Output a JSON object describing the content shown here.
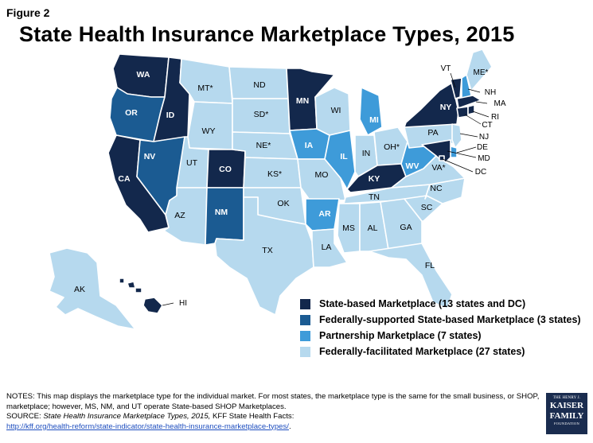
{
  "figure_label": "Figure 2",
  "title": "State Health Insurance Marketplace Types, 2015",
  "colors": {
    "state_based": "#13284c",
    "federally_supported": "#1b5b92",
    "partnership": "#3e9bd9",
    "federally_facilitated": "#b6d9ee"
  },
  "legend": [
    {
      "type": "state_based",
      "label": "State-based Marketplace (13 states and DC)"
    },
    {
      "type": "federally_supported",
      "label": "Federally-supported State-based Marketplace (3 states)"
    },
    {
      "type": "partnership",
      "label": "Partnership Marketplace (7 states)"
    },
    {
      "type": "federally_facilitated",
      "label": "Federally-facilitated Marketplace (27 states)"
    }
  ],
  "states": {
    "WA": {
      "label": "WA",
      "type": "state_based"
    },
    "OR": {
      "label": "OR",
      "type": "federally_supported"
    },
    "CA": {
      "label": "CA",
      "type": "state_based"
    },
    "ID": {
      "label": "ID",
      "type": "state_based"
    },
    "NV": {
      "label": "NV",
      "type": "federally_supported"
    },
    "MT": {
      "label": "MT*",
      "type": "federally_facilitated"
    },
    "WY": {
      "label": "WY",
      "type": "federally_facilitated"
    },
    "UT": {
      "label": "UT",
      "type": "federally_facilitated"
    },
    "AZ": {
      "label": "AZ",
      "type": "federally_facilitated"
    },
    "CO": {
      "label": "CO",
      "type": "state_based"
    },
    "NM": {
      "label": "NM",
      "type": "federally_supported"
    },
    "ND": {
      "label": "ND",
      "type": "federally_facilitated"
    },
    "SD": {
      "label": "SD*",
      "type": "federally_facilitated"
    },
    "NE": {
      "label": "NE*",
      "type": "federally_facilitated"
    },
    "KS": {
      "label": "KS*",
      "type": "federally_facilitated"
    },
    "OK": {
      "label": "OK",
      "type": "federally_facilitated"
    },
    "TX": {
      "label": "TX",
      "type": "federally_facilitated"
    },
    "MN": {
      "label": "MN",
      "type": "state_based"
    },
    "IA": {
      "label": "IA",
      "type": "partnership"
    },
    "MO": {
      "label": "MO",
      "type": "federally_facilitated"
    },
    "AR": {
      "label": "AR",
      "type": "partnership"
    },
    "LA": {
      "label": "LA",
      "type": "federally_facilitated"
    },
    "WI": {
      "label": "WI",
      "type": "federally_facilitated"
    },
    "IL": {
      "label": "IL",
      "type": "partnership"
    },
    "MI": {
      "label": "MI",
      "type": "partnership"
    },
    "IN": {
      "label": "IN",
      "type": "federally_facilitated"
    },
    "OH": {
      "label": "OH*",
      "type": "federally_facilitated"
    },
    "KY": {
      "label": "KY",
      "type": "state_based"
    },
    "TN": {
      "label": "TN",
      "type": "federally_facilitated"
    },
    "MS": {
      "label": "MS",
      "type": "federally_facilitated"
    },
    "AL": {
      "label": "AL",
      "type": "federally_facilitated"
    },
    "GA": {
      "label": "GA",
      "type": "federally_facilitated"
    },
    "FL": {
      "label": "FL",
      "type": "federally_facilitated"
    },
    "SC": {
      "label": "SC",
      "type": "federally_facilitated"
    },
    "NC": {
      "label": "NC",
      "type": "federally_facilitated"
    },
    "VA": {
      "label": "VA*",
      "type": "federally_facilitated"
    },
    "WV": {
      "label": "WV",
      "type": "partnership"
    },
    "PA": {
      "label": "PA",
      "type": "federally_facilitated"
    },
    "NY": {
      "label": "NY",
      "type": "state_based"
    },
    "VT": {
      "label": "VT",
      "type": "state_based"
    },
    "NH": {
      "label": "NH",
      "type": "partnership"
    },
    "ME": {
      "label": "ME*",
      "type": "federally_facilitated"
    },
    "MA": {
      "label": "MA",
      "type": "state_based"
    },
    "RI": {
      "label": "RI",
      "type": "state_based"
    },
    "CT": {
      "label": "CT",
      "type": "state_based"
    },
    "NJ": {
      "label": "NJ",
      "type": "federally_facilitated"
    },
    "DE": {
      "label": "DE",
      "type": "partnership"
    },
    "MD": {
      "label": "MD",
      "type": "state_based"
    },
    "DC": {
      "label": "DC",
      "type": "state_based"
    },
    "AK": {
      "label": "AK",
      "type": "federally_facilitated"
    },
    "HI": {
      "label": "HI",
      "type": "state_based"
    }
  },
  "notes": {
    "line1": "NOTES: This map displays the marketplace type for the individual market. For most states, the marketplace type is the same for the small business, or SHOP, marketplace; however, MS, NM, and UT operate State-based SHOP Marketplaces.",
    "source_prefix": "SOURCE: ",
    "source_title": "State Health Insurance Marketplace Types, 2015,",
    "source_rest": " KFF State Health Facts:",
    "link": "http://kff.org/health-reform/state-indicator/state-health-insurance-marketplace-types/",
    "link_end": "."
  },
  "logo": {
    "line1": "THE HENRY J.",
    "line2": "KAISER",
    "line3": "FAMILY",
    "line4": "FOUNDATION"
  }
}
